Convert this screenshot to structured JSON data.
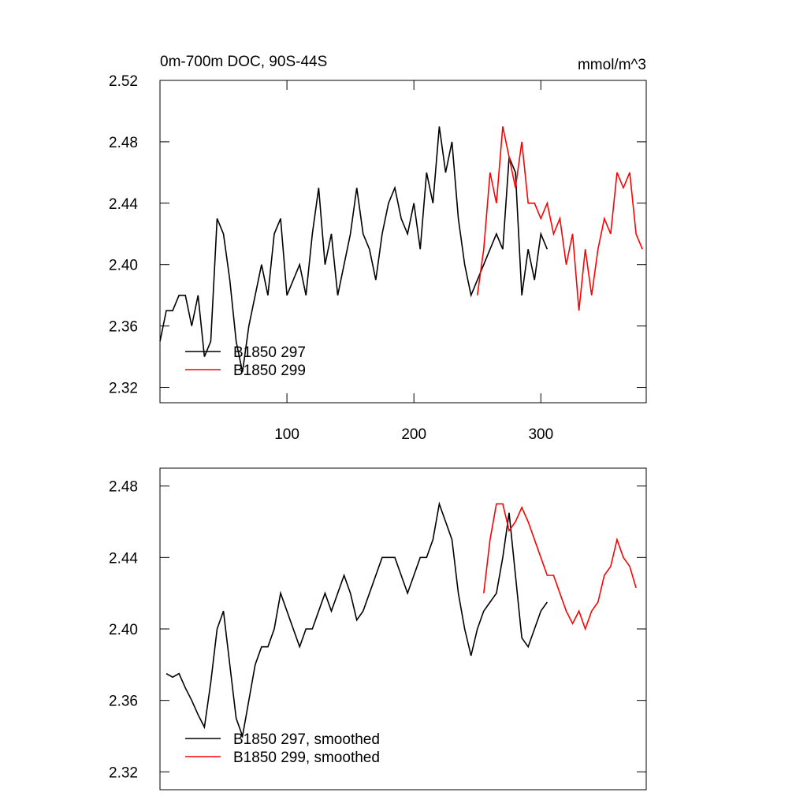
{
  "chart_data": [
    {
      "type": "line",
      "title": "0m-700m DOC, 90S-44S",
      "units": "mmol/m^3",
      "x": [
        0,
        5,
        10,
        15,
        20,
        25,
        30,
        35,
        40,
        45,
        50,
        55,
        60,
        65,
        70,
        75,
        80,
        85,
        90,
        95,
        100,
        105,
        110,
        115,
        120,
        125,
        130,
        135,
        140,
        145,
        150,
        155,
        160,
        165,
        170,
        175,
        180,
        185,
        190,
        195,
        200,
        205,
        210,
        215,
        220,
        225,
        230,
        235,
        240,
        245,
        250,
        255,
        260,
        265,
        270,
        275,
        280,
        285,
        290,
        295,
        300,
        305,
        310,
        315,
        320,
        325,
        330,
        335,
        340,
        345,
        350,
        355,
        360,
        365,
        370,
        375,
        380
      ],
      "series": [
        {
          "name": "B1850 297",
          "color": "#000000",
          "values": [
            2.35,
            2.37,
            2.37,
            2.38,
            2.38,
            2.36,
            2.38,
            2.34,
            2.35,
            2.43,
            2.42,
            2.39,
            2.35,
            2.33,
            2.36,
            2.38,
            2.4,
            2.38,
            2.42,
            2.43,
            2.38,
            2.39,
            2.4,
            2.38,
            2.42,
            2.45,
            2.4,
            2.42,
            2.38,
            2.4,
            2.42,
            2.45,
            2.42,
            2.41,
            2.39,
            2.42,
            2.44,
            2.45,
            2.43,
            2.42,
            2.44,
            2.41,
            2.46,
            2.44,
            2.49,
            2.46,
            2.48,
            2.43,
            2.4,
            2.38,
            2.39,
            2.4,
            2.41,
            2.42,
            2.41,
            2.47,
            2.46,
            2.38,
            2.41,
            2.39,
            2.42,
            2.41,
            null,
            null,
            null,
            null,
            null,
            null,
            null,
            null,
            null,
            null,
            null,
            null,
            null,
            null,
            null
          ]
        },
        {
          "name": "B1850 299",
          "color": "#ff0000",
          "values": [
            null,
            null,
            null,
            null,
            null,
            null,
            null,
            null,
            null,
            null,
            null,
            null,
            null,
            null,
            null,
            null,
            null,
            null,
            null,
            null,
            null,
            null,
            null,
            null,
            null,
            null,
            null,
            null,
            null,
            null,
            null,
            null,
            null,
            null,
            null,
            null,
            null,
            null,
            null,
            null,
            null,
            null,
            null,
            null,
            null,
            null,
            null,
            null,
            null,
            null,
            2.38,
            2.41,
            2.46,
            2.44,
            2.49,
            2.47,
            2.45,
            2.48,
            2.44,
            2.44,
            2.43,
            2.44,
            2.42,
            2.43,
            2.4,
            2.42,
            2.37,
            2.41,
            2.38,
            2.41,
            2.43,
            2.42,
            2.46,
            2.45,
            2.46,
            2.42,
            2.41
          ]
        }
      ],
      "xlim": [
        0,
        383
      ],
      "xticks": [
        100,
        200,
        300
      ],
      "ylim": [
        2.31,
        2.52
      ],
      "yticks": [
        2.32,
        2.36,
        {
          "value": 2.4,
          "label": "2.40"
        },
        2.44,
        2.48,
        2.52
      ],
      "legend": "lower left"
    },
    {
      "type": "line",
      "x": [
        0,
        5,
        10,
        15,
        20,
        25,
        30,
        35,
        40,
        45,
        50,
        55,
        60,
        65,
        70,
        75,
        80,
        85,
        90,
        95,
        100,
        105,
        110,
        115,
        120,
        125,
        130,
        135,
        140,
        145,
        150,
        155,
        160,
        165,
        170,
        175,
        180,
        185,
        190,
        195,
        200,
        205,
        210,
        215,
        220,
        225,
        230,
        235,
        240,
        245,
        250,
        255,
        260,
        265,
        270,
        275,
        280,
        285,
        290,
        295,
        300,
        305,
        310,
        315,
        320,
        325,
        330,
        335,
        340,
        345,
        350,
        355,
        360,
        365,
        370,
        375,
        380
      ],
      "series": [
        {
          "name": "B1850 297, smoothed",
          "color": "#000000",
          "values": [
            null,
            2.375,
            2.373,
            2.375,
            2.367,
            2.36,
            2.352,
            2.345,
            2.37,
            2.4,
            2.41,
            2.38,
            2.35,
            2.34,
            2.36,
            2.38,
            2.39,
            2.39,
            2.4,
            2.42,
            2.41,
            2.4,
            2.39,
            2.4,
            2.4,
            2.41,
            2.42,
            2.41,
            2.42,
            2.43,
            2.42,
            2.405,
            2.41,
            2.42,
            2.43,
            2.44,
            2.44,
            2.44,
            2.43,
            2.42,
            2.43,
            2.44,
            2.44,
            2.45,
            2.47,
            2.46,
            2.45,
            2.42,
            2.4,
            2.385,
            2.4,
            2.41,
            2.415,
            2.42,
            2.44,
            2.465,
            2.43,
            2.395,
            2.39,
            2.4,
            2.41,
            2.415,
            null,
            null,
            null,
            null,
            null,
            null,
            null,
            null,
            null,
            null,
            null,
            null,
            null,
            null,
            null
          ]
        },
        {
          "name": "B1850 299, smoothed",
          "color": "#ff0000",
          "values": [
            null,
            null,
            null,
            null,
            null,
            null,
            null,
            null,
            null,
            null,
            null,
            null,
            null,
            null,
            null,
            null,
            null,
            null,
            null,
            null,
            null,
            null,
            null,
            null,
            null,
            null,
            null,
            null,
            null,
            null,
            null,
            null,
            null,
            null,
            null,
            null,
            null,
            null,
            null,
            null,
            null,
            null,
            null,
            null,
            null,
            null,
            null,
            null,
            null,
            null,
            null,
            2.42,
            2.45,
            2.47,
            2.47,
            2.455,
            2.46,
            2.468,
            2.46,
            2.45,
            2.44,
            2.43,
            2.43,
            2.42,
            2.41,
            2.403,
            2.41,
            2.4,
            2.41,
            2.415,
            2.43,
            2.435,
            2.45,
            2.44,
            2.435,
            2.423,
            null
          ]
        }
      ],
      "xlim": [
        0,
        383
      ],
      "ylim": [
        2.31,
        2.49
      ],
      "yticks": [
        2.32,
        2.36,
        {
          "value": 2.4,
          "label": "2.40"
        },
        2.44,
        2.48
      ],
      "legend": "lower left"
    }
  ]
}
